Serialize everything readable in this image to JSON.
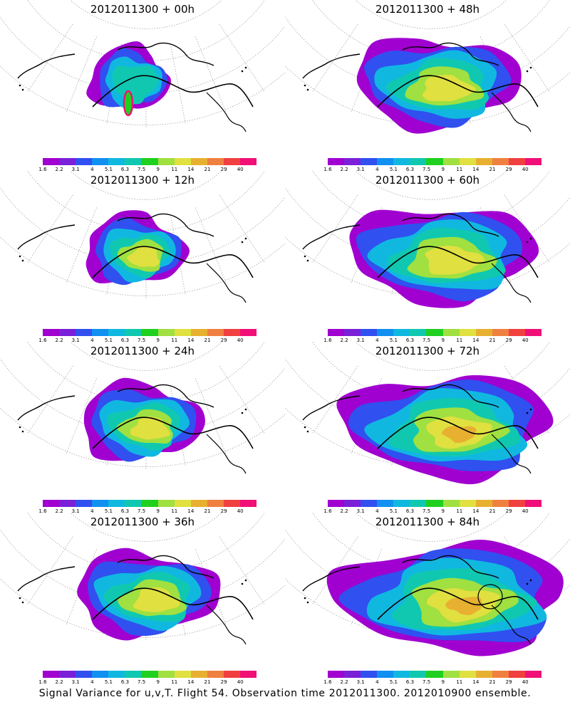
{
  "panels": [
    {
      "title": "2012011300 + 00h",
      "lead": 0
    },
    {
      "title": "2012011300 + 48h",
      "lead": 48
    },
    {
      "title": "2012011300 + 12h",
      "lead": 12
    },
    {
      "title": "2012011300 + 60h",
      "lead": 60
    },
    {
      "title": "2012011300 + 24h",
      "lead": 24
    },
    {
      "title": "2012011300 + 72h",
      "lead": 72
    },
    {
      "title": "2012011300 + 36h",
      "lead": 36
    },
    {
      "title": "2012011300 + 84h",
      "lead": 84
    }
  ],
  "colorbar": {
    "labels": [
      "1.6",
      "2.2",
      "3.1",
      "4",
      "5.1",
      "6.3",
      "7.5",
      "9",
      "11",
      "14",
      "21",
      "29",
      "40"
    ],
    "colors": [
      "#a000d0",
      "#7a20d8",
      "#3050f0",
      "#1090f0",
      "#10b8e0",
      "#10c8b0",
      "#20d020",
      "#a0e040",
      "#e0e040",
      "#e8b030",
      "#f08040",
      "#f04040",
      "#f01078"
    ]
  },
  "caption": "Signal Variance for u,v,T. Flight 54. Observation time 2012011300. 2012010900 ensemble."
}
